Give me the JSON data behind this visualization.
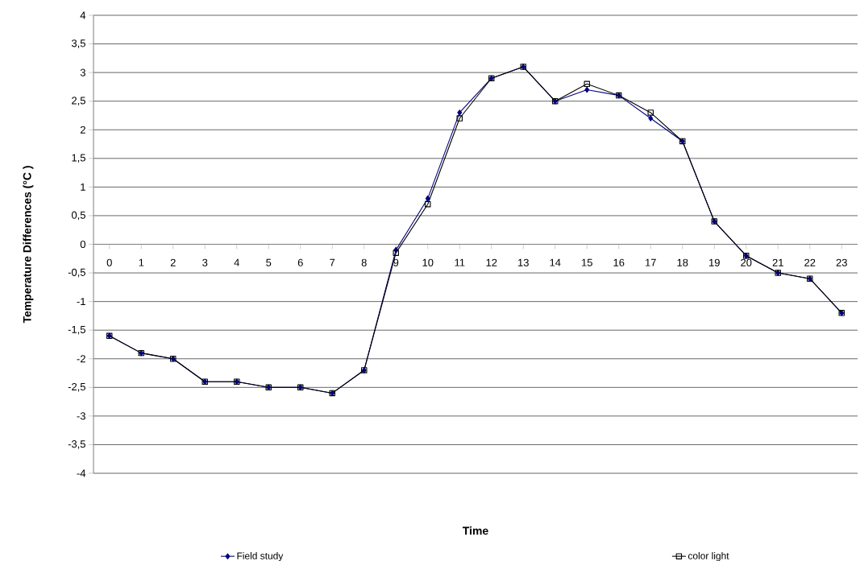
{
  "chart_data": {
    "type": "line",
    "xlabel": "Time",
    "ylabel": "Temperature Differences (°C )",
    "categories": [
      "0",
      "1",
      "2",
      "3",
      "4",
      "5",
      "6",
      "7",
      "8",
      "9",
      "10",
      "11",
      "12",
      "13",
      "14",
      "15",
      "16",
      "17",
      "18",
      "19",
      "20",
      "21",
      "22",
      "23"
    ],
    "series": [
      {
        "name": "Field study",
        "color": "#000080",
        "marker": "diamond",
        "values": [
          -1.6,
          -1.9,
          -2.0,
          -2.4,
          -2.4,
          -2.5,
          -2.5,
          -2.6,
          -2.2,
          -0.1,
          0.8,
          2.3,
          2.9,
          3.1,
          2.5,
          2.7,
          2.6,
          2.2,
          1.8,
          0.4,
          -0.2,
          -0.5,
          -0.6,
          -1.2
        ]
      },
      {
        "name": "color light",
        "color": "#000000",
        "marker": "square",
        "values": [
          -1.6,
          -1.9,
          -2.0,
          -2.4,
          -2.4,
          -2.5,
          -2.5,
          -2.6,
          -2.2,
          -0.15,
          0.7,
          2.2,
          2.9,
          3.1,
          2.5,
          2.8,
          2.6,
          2.3,
          1.8,
          0.4,
          -0.2,
          -0.5,
          -0.6,
          -1.2
        ]
      }
    ],
    "ylim": [
      -4,
      4
    ],
    "yticks": [
      -4,
      {
        "value": -3.5,
        "label": "-3,5"
      },
      -3,
      {
        "value": -2.5,
        "label": "-2,5"
      },
      -2,
      {
        "value": -1.5,
        "label": "-1,5"
      },
      -1,
      {
        "value": -0.5,
        "label": "-0,5"
      },
      0,
      {
        "value": 0.5,
        "label": "0,5"
      },
      1,
      {
        "value": 1.5,
        "label": "1,5"
      },
      2,
      {
        "value": 2.5,
        "label": "2,5"
      },
      3,
      {
        "value": 3.5,
        "label": "3,5"
      },
      4
    ],
    "grid": "y",
    "legend": "bottom",
    "line_style": "solid"
  }
}
